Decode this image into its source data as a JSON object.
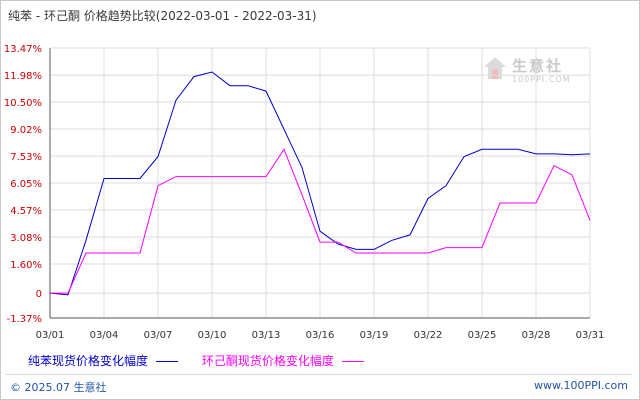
{
  "title": "纯苯 - 环己酮 价格趋势比较(2022-03-01 - 2022-03-31)",
  "watermark": {
    "name": "生意社",
    "site": "100PPI.COM"
  },
  "footer": {
    "copyright": "© 2025.07 生意社",
    "site": "www.100PPI.com"
  },
  "colors": {
    "grid": "#dcdcdc",
    "axis": "#555555",
    "series1": "#0000cc",
    "series2": "#ff00ff"
  },
  "chart_data": {
    "type": "line",
    "ylim": [
      -1.37,
      13.47
    ],
    "yticks": [
      "13.47%",
      "11.98%",
      "10.50%",
      "9.02%",
      "7.53%",
      "6.05%",
      "4.57%",
      "3.08%",
      "1.60%",
      "0",
      "-1.37%"
    ],
    "yticks_values": [
      13.47,
      11.98,
      10.5,
      9.02,
      7.53,
      6.05,
      4.57,
      3.08,
      1.6,
      0,
      -1.37
    ],
    "x": [
      "03/01",
      "03/02",
      "03/03",
      "03/04",
      "03/05",
      "03/06",
      "03/07",
      "03/08",
      "03/09",
      "03/10",
      "03/11",
      "03/12",
      "03/13",
      "03/14",
      "03/15",
      "03/16",
      "03/17",
      "03/18",
      "03/19",
      "03/20",
      "03/21",
      "03/22",
      "03/23",
      "03/24",
      "03/25",
      "03/26",
      "03/27",
      "03/28",
      "03/29",
      "03/30",
      "03/31"
    ],
    "xticks": [
      "03/01",
      "03/04",
      "03/07",
      "03/10",
      "03/13",
      "03/16",
      "03/19",
      "03/22",
      "03/25",
      "03/28",
      "03/31"
    ],
    "xlabel": "",
    "ylabel": "",
    "grid": true,
    "series": [
      {
        "name": "纯苯现货价格变化幅度",
        "color": "#0000cc",
        "values": [
          0,
          -0.1,
          2.9,
          6.3,
          6.3,
          6.3,
          7.5,
          10.6,
          11.9,
          12.15,
          11.4,
          11.4,
          11.1,
          9.0,
          6.9,
          3.4,
          2.7,
          2.4,
          2.4,
          2.9,
          3.2,
          5.2,
          5.9,
          7.5,
          7.9,
          7.9,
          7.9,
          7.65,
          7.65,
          7.6,
          7.65
        ]
      },
      {
        "name": "环己酮现货价格变化幅度",
        "color": "#ff00ff",
        "values": [
          0,
          0,
          2.2,
          2.2,
          2.2,
          2.2,
          5.9,
          6.4,
          6.4,
          6.4,
          6.4,
          6.4,
          6.4,
          7.9,
          5.4,
          2.8,
          2.8,
          2.2,
          2.2,
          2.2,
          2.2,
          2.2,
          2.5,
          2.5,
          2.5,
          4.95,
          4.95,
          4.95,
          7.0,
          6.5,
          4.0
        ]
      }
    ],
    "legend_position": "bottom-left"
  }
}
